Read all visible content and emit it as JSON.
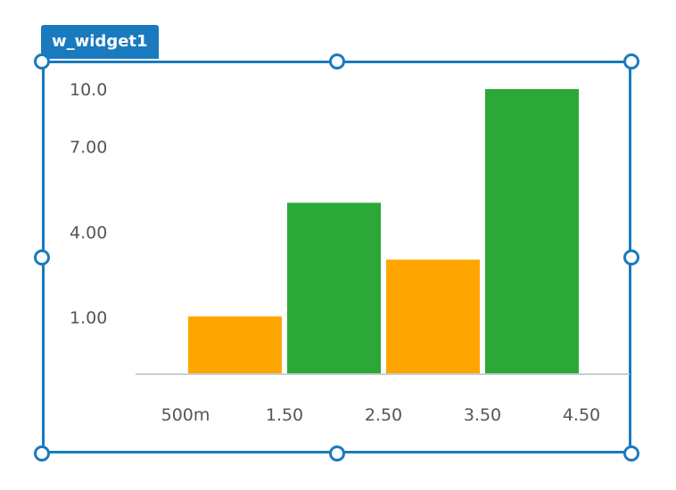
{
  "widget": {
    "name": "w_widget1"
  },
  "chart_data": {
    "type": "bar",
    "x": [
      0.5,
      1.5,
      2.5,
      3.5,
      4.5
    ],
    "xtick_labels": [
      "500m",
      "1.50",
      "2.50",
      "3.50",
      "4.50"
    ],
    "ytick_values": [
      1,
      4,
      7,
      10
    ],
    "ytick_labels": [
      "1.00",
      "4.00",
      "7.00",
      "10.0"
    ],
    "bars": [
      {
        "x": 1.0,
        "value": 2,
        "color": "#ffa500"
      },
      {
        "x": 2.0,
        "value": 6,
        "color": "#2ca836"
      },
      {
        "x": 3.0,
        "value": 4,
        "color": "#ffa500"
      },
      {
        "x": 4.0,
        "value": 10,
        "color": "#2ca836"
      }
    ],
    "xlim": [
      0.5,
      4.5
    ],
    "ylim": [
      0,
      10
    ],
    "grid": false
  }
}
